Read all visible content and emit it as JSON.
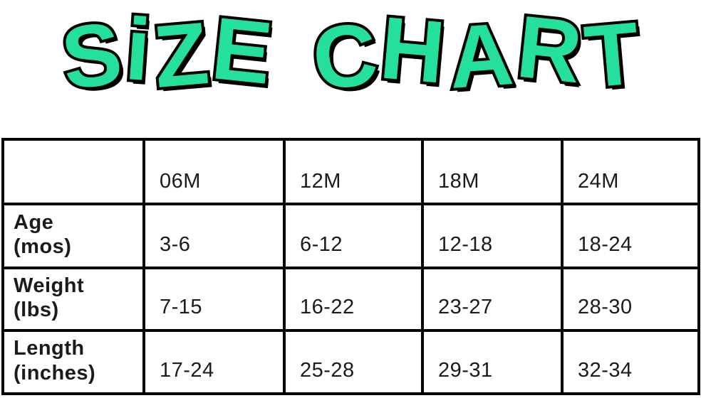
{
  "title": "SiZE CHART",
  "colors": {
    "title_green": "#24E09B",
    "outline": "#000000",
    "background": "#FFFFFF"
  },
  "table": {
    "columns": [
      "06M",
      "12M",
      "18M",
      "24M"
    ],
    "rows": [
      {
        "label_line1": "Age",
        "label_line2": "(mos)",
        "values": [
          "3-6",
          "6-12",
          "12-18",
          "18-24"
        ]
      },
      {
        "label_line1": "Weight",
        "label_line2": "(lbs)",
        "values": [
          "7-15",
          "16-22",
          "23-27",
          "28-30"
        ]
      },
      {
        "label_line1": "Length",
        "label_line2": "(inches)",
        "values": [
          "17-24",
          "25-28",
          "29-31",
          "32-34"
        ]
      }
    ]
  },
  "chart_data": {
    "type": "table",
    "title": "SiZE CHART",
    "columns": [
      "",
      "06M",
      "12M",
      "18M",
      "24M"
    ],
    "rows": [
      [
        "Age (mos)",
        "3-6",
        "6-12",
        "12-18",
        "18-24"
      ],
      [
        "Weight (lbs)",
        "7-15",
        "16-22",
        "23-27",
        "28-30"
      ],
      [
        "Length (inches)",
        "17-24",
        "25-28",
        "29-31",
        "32-34"
      ]
    ],
    "layout": {
      "grid": true,
      "header_row_offset": true
    }
  }
}
